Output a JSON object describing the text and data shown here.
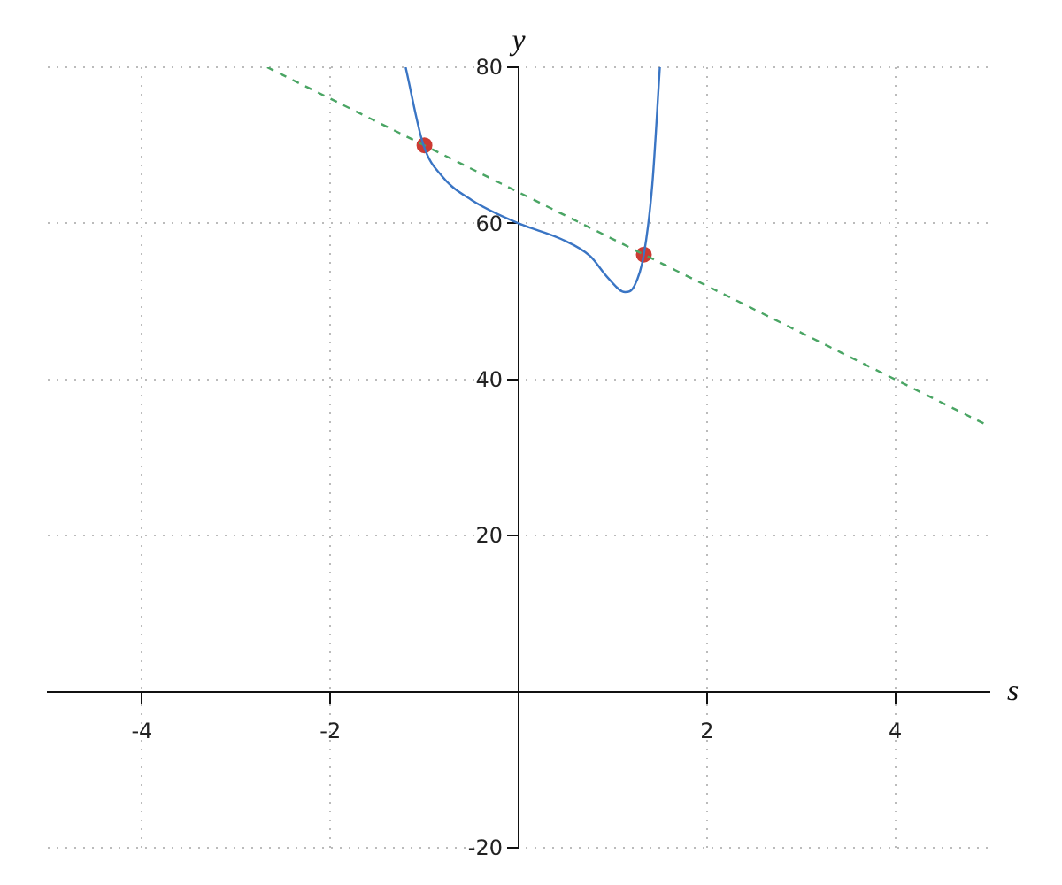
{
  "chart_data": {
    "type": "line",
    "xlabel": "s",
    "ylabel": "y",
    "xlim": [
      -5,
      5
    ],
    "ylim": [
      -20,
      80
    ],
    "xticks": [
      -4,
      -2,
      2,
      4
    ],
    "yticks": [
      -20,
      20,
      40,
      60,
      80
    ],
    "grid": true,
    "legend": false,
    "marker": "none",
    "series": [
      {
        "type": "line",
        "color": "#3a75c4",
        "line_style": "solid",
        "x": [
          -1.2,
          -1.01,
          -0.81,
          -0.5,
          0,
          0.45,
          0.76,
          0.95,
          1.13,
          1.23,
          1.33,
          1.42,
          1.5
        ],
        "values": [
          80,
          70,
          66,
          63,
          60,
          58,
          55.8,
          53,
          51.2,
          52,
          56,
          65,
          80
        ]
      },
      {
        "color": "#4aa564",
        "line_style": "dashed",
        "x": [
          -2.67,
          5
        ],
        "values": [
          80,
          34
        ]
      },
      {
        "type": "scatter",
        "color": "#cc3b33",
        "marker": "circle",
        "x": [
          -1,
          1.33
        ],
        "values": [
          70,
          56
        ]
      }
    ]
  }
}
